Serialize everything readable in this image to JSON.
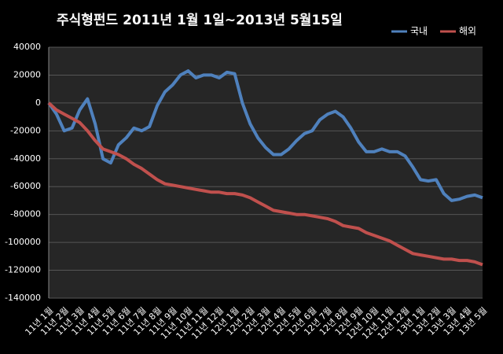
{
  "chart_data": {
    "type": "line",
    "title": "주식형펀드    2011년 1월 1일~2013년 5월15일",
    "categories": [
      "11년 1월",
      null,
      "11년 2월",
      null,
      "11년 3월",
      null,
      "11년 4월",
      null,
      "11년 5월",
      null,
      "11년 6월",
      null,
      "11년 7월",
      null,
      "11년 8월",
      null,
      "11년 9월",
      null,
      "11년 10월",
      null,
      "11년 11월",
      null,
      "11년 12월",
      null,
      "12년 1월",
      null,
      "12년 2월",
      null,
      "12년 3월",
      null,
      "12년 4월",
      null,
      "12년 5월",
      null,
      "12년 6월",
      null,
      "12년 7월",
      null,
      "12년 8월",
      null,
      "12년 9월",
      null,
      "12년 10월",
      null,
      "12년 11월",
      null,
      "12년 12월",
      null,
      "13년 1월",
      null,
      "13년 2월",
      null,
      "13년 3월",
      null,
      "13년 4월",
      null,
      "13년 5월"
    ],
    "series": [
      {
        "name": "국내",
        "color": "#4f81bd",
        "values": [
          0,
          -8000,
          -20000,
          -18000,
          -5000,
          3000,
          -15000,
          -40000,
          -43000,
          -30000,
          -25000,
          -18000,
          -20000,
          -17000,
          -2000,
          8000,
          13000,
          20000,
          23000,
          18000,
          20000,
          20000,
          18000,
          22000,
          21000,
          0,
          -15000,
          -25000,
          -32000,
          -37000,
          -37000,
          -33000,
          -27000,
          -22000,
          -20000,
          -12000,
          -8000,
          -6000,
          -10000,
          -18000,
          -28000,
          -35000,
          -35000,
          -33000,
          -35000,
          -35000,
          -38000,
          -46000,
          -55000,
          -56000,
          -55000,
          -65000,
          -70000,
          -69000,
          -67000,
          -66000,
          -68000
        ]
      },
      {
        "name": "해외",
        "color": "#c0504d",
        "values": [
          0,
          -5000,
          -8000,
          -11000,
          -14000,
          -20000,
          -27000,
          -33000,
          -35000,
          -37000,
          -40000,
          -44000,
          -47000,
          -51000,
          -55000,
          -58000,
          -59000,
          -60000,
          -61000,
          -62000,
          -63000,
          -64000,
          -64000,
          -65000,
          -65000,
          -66000,
          -68000,
          -71000,
          -74000,
          -77000,
          -78000,
          -79000,
          -80000,
          -80000,
          -81000,
          -82000,
          -83000,
          -85000,
          -88000,
          -89000,
          -90000,
          -93000,
          -95000,
          -97000,
          -99000,
          -102000,
          -105000,
          -108000,
          -109000,
          -110000,
          -111000,
          -112000,
          -112000,
          -113000,
          -113000,
          -114000,
          -116000
        ]
      }
    ],
    "ylim": [
      -140000,
      40000
    ],
    "yticks": [
      -140000,
      -120000,
      -100000,
      -80000,
      -60000,
      -40000,
      -20000,
      0,
      20000,
      40000
    ],
    "grid": true,
    "legend": "top-right"
  }
}
